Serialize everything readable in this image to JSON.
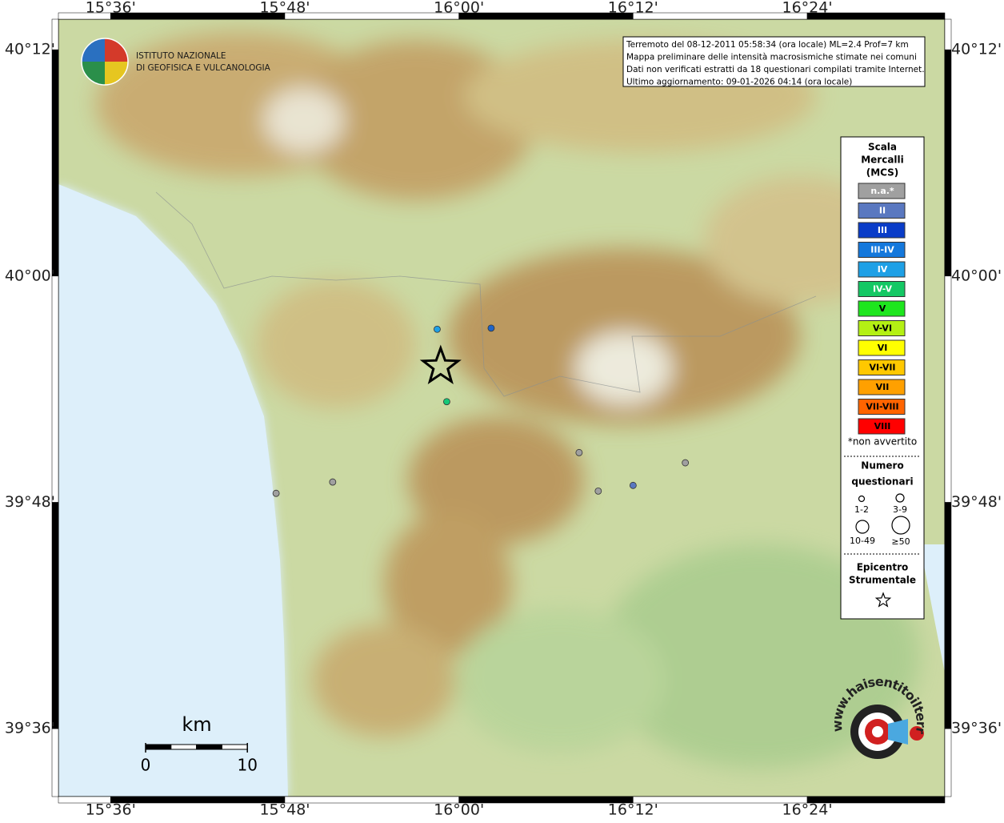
{
  "map": {
    "lonlim": [
      15.54,
      16.558
    ],
    "latlim": [
      39.54,
      40.227
    ],
    "lon_ticks": [
      {
        "value": 15.6,
        "label": "15°36'"
      },
      {
        "value": 15.8,
        "label": "15°48'"
      },
      {
        "value": 16.0,
        "label": "16°00'"
      },
      {
        "value": 16.2,
        "label": "16°12'"
      },
      {
        "value": 16.4,
        "label": "16°24'"
      }
    ],
    "lat_ticks": [
      {
        "value": 40.2,
        "label": "40°12'"
      },
      {
        "value": 40.0,
        "label": "40°00'"
      },
      {
        "value": 39.8,
        "label": "39°48'"
      },
      {
        "value": 39.6,
        "label": "39°36'"
      }
    ],
    "points": [
      {
        "lon": 15.975,
        "lat": 39.953,
        "color": "#1ea0e6"
      },
      {
        "lon": 16.037,
        "lat": 39.954,
        "color": "#1e64c8"
      },
      {
        "lon": 15.986,
        "lat": 39.889,
        "color": "#14c878"
      },
      {
        "lon": 16.138,
        "lat": 39.844,
        "color": "#a0a0a0"
      },
      {
        "lon": 16.26,
        "lat": 39.835,
        "color": "#a0a0a0"
      },
      {
        "lon": 15.855,
        "lat": 39.818,
        "color": "#a0a0a0"
      },
      {
        "lon": 16.16,
        "lat": 39.81,
        "color": "#a0a0a0"
      },
      {
        "lon": 16.2,
        "lat": 39.815,
        "color": "#5a78c0"
      },
      {
        "lon": 15.79,
        "lat": 39.808,
        "color": "#a0a0a0"
      }
    ],
    "epicenter": {
      "lon": 15.979,
      "lat": 39.92
    }
  },
  "logo": {
    "line1": "ISTITUTO NAZIONALE",
    "line2": "DI GEOFISICA E VULCANOLOGIA"
  },
  "info": {
    "lines": [
      "Terremoto del 08-12-2011 05:58:34 (ora locale) ML=2.4 Prof=7 km",
      "Mappa preliminare delle intensità macrosismiche stimate nei comuni",
      "Dati non verificati estratti da 18 questionari compilati tramite Internet.",
      "Ultimo aggiornamento: 09-01-2026 04:14 (ora locale)"
    ]
  },
  "legend": {
    "title_lines": [
      "Scala",
      "Mercalli",
      "(MCS)"
    ],
    "classes": [
      {
        "label": "n.a.*",
        "color": "#a0a0a0"
      },
      {
        "label": "II",
        "color": "#5a78c0"
      },
      {
        "label": "III",
        "color": "#0a3cc8"
      },
      {
        "label": "III-IV",
        "color": "#1478dc"
      },
      {
        "label": "IV",
        "color": "#1ea0e6"
      },
      {
        "label": "IV-V",
        "color": "#14c864"
      },
      {
        "label": "V",
        "color": "#1ee61e"
      },
      {
        "label": "V-VI",
        "color": "#b4f014"
      },
      {
        "label": "VI",
        "color": "#ffff00"
      },
      {
        "label": "VI-VII",
        "color": "#ffc800"
      },
      {
        "label": "VII",
        "color": "#ffa000"
      },
      {
        "label": "VII-VIII",
        "color": "#ff6400"
      },
      {
        "label": "VIII",
        "color": "#ff0000"
      }
    ],
    "note": "*non avvertito",
    "count_title": [
      "Numero",
      "questionari"
    ],
    "sizes": [
      "1-2",
      "3-9",
      "10-49",
      "≥50"
    ],
    "epicenter_title": [
      "Epicentro",
      "Strumentale"
    ]
  },
  "scale": {
    "unit": "km",
    "ticks": [
      0,
      10
    ]
  },
  "badge": {
    "text": "www.haisentitoilterremoto.it"
  }
}
